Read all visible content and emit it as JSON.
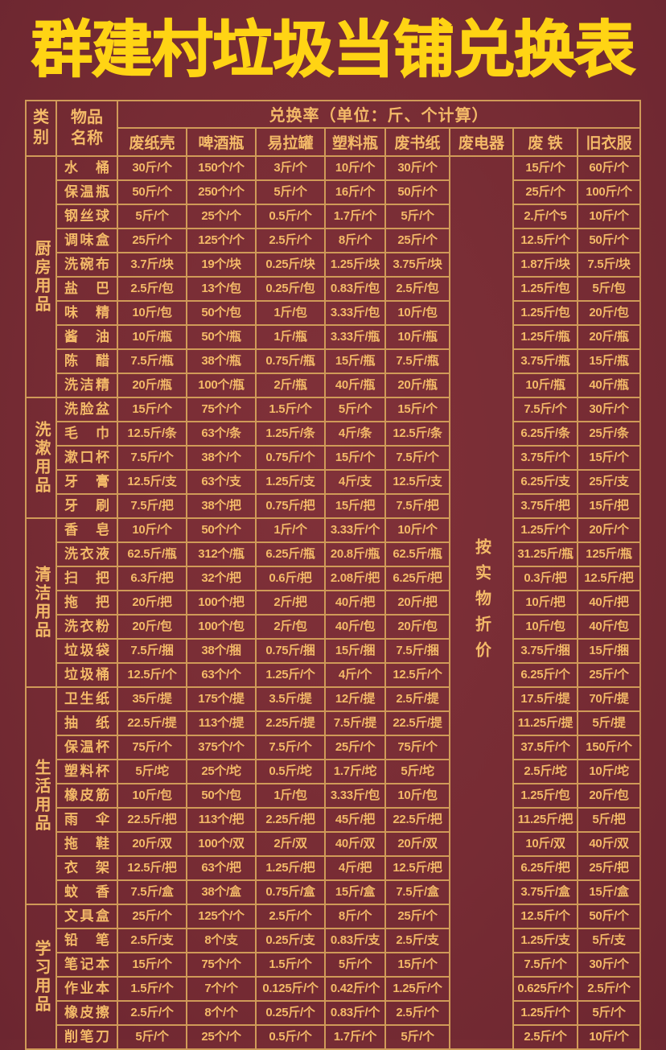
{
  "title": "群建村垃圾当铺兑换表",
  "colors": {
    "background": "#772c34",
    "border_gold": "#d09a58",
    "text_gold": "#f4ba68",
    "title_yellow": "#ffd414"
  },
  "table": {
    "corner": {
      "category": "类别",
      "item": "物品名称"
    },
    "rate_header": "兑换率（单位：斤、个计算）",
    "columns": [
      "废纸壳",
      "啤酒瓶",
      "易拉罐",
      "塑料瓶",
      "废书纸",
      "废电器",
      "废 铁",
      "旧衣服"
    ],
    "appliance_note": "按实物折价",
    "sections": [
      {
        "category": "厨房用品",
        "rows": [
          {
            "name": "水桶",
            "values": [
              "30斤/个",
              "150个/个",
              "3斤/个",
              "10斤/个",
              "30斤/个",
              "15斤/个",
              "60斤/个"
            ]
          },
          {
            "name": "保温瓶",
            "values": [
              "50斤/个",
              "250个/个",
              "5斤/个",
              "16斤/个",
              "50斤/个",
              "25斤/个",
              "100斤/个"
            ]
          },
          {
            "name": "钢丝球",
            "values": [
              "5斤/个",
              "25个/个",
              "0.5斤/个",
              "1.7斤/个",
              "5斤/个",
              "2.斤/个5",
              "10斤/个"
            ]
          },
          {
            "name": "调味盒",
            "values": [
              "25斤/个",
              "125个/个",
              "2.5斤/个",
              "8斤/个",
              "25斤/个",
              "12.5斤/个",
              "50斤/个"
            ]
          },
          {
            "name": "洗碗布",
            "values": [
              "3.7斤/块",
              "19个/块",
              "0.25斤/块",
              "1.25斤/块",
              "3.75斤/块",
              "1.87斤/块",
              "7.5斤/块"
            ]
          },
          {
            "name": "盐巴",
            "values": [
              "2.5斤/包",
              "13个/包",
              "0.25斤/包",
              "0.83斤/包",
              "2.5斤/包",
              "1.25斤/包",
              "5斤/包"
            ]
          },
          {
            "name": "味精",
            "values": [
              "10斤/包",
              "50个/包",
              "1斤/包",
              "3.33斤/包",
              "10斤/包",
              "1.25斤/包",
              "20斤/包"
            ]
          },
          {
            "name": "酱油",
            "values": [
              "10斤/瓶",
              "50个/瓶",
              "1斤/瓶",
              "3.33斤/瓶",
              "10斤/瓶",
              "1.25斤/瓶",
              "20斤/瓶"
            ]
          },
          {
            "name": "陈醋",
            "values": [
              "7.5斤/瓶",
              "38个/瓶",
              "0.75斤/瓶",
              "15斤/瓶",
              "7.5斤/瓶",
              "3.75斤/瓶",
              "15斤/瓶"
            ]
          },
          {
            "name": "洗洁精",
            "values": [
              "20斤/瓶",
              "100个/瓶",
              "2斤/瓶",
              "40斤/瓶",
              "20斤/瓶",
              "10斤/瓶",
              "40斤/瓶"
            ]
          }
        ]
      },
      {
        "category": "洗漱用品",
        "rows": [
          {
            "name": "洗脸盆",
            "values": [
              "15斤/个",
              "75个/个",
              "1.5斤/个",
              "5斤/个",
              "15斤/个",
              "7.5斤/个",
              "30斤/个"
            ]
          },
          {
            "name": "毛巾",
            "values": [
              "12.5斤/条",
              "63个/条",
              "1.25斤/条",
              "4斤/条",
              "12.5斤/条",
              "6.25斤/条",
              "25斤/条"
            ]
          },
          {
            "name": "漱口杯",
            "values": [
              "7.5斤/个",
              "38个/个",
              "0.75斤/个",
              "15斤/个",
              "7.5斤/个",
              "3.75斤/个",
              "15斤/个"
            ]
          },
          {
            "name": "牙膏",
            "values": [
              "12.5斤/支",
              "63个/支",
              "1.25斤/支",
              "4斤/支",
              "12.5斤/支",
              "6.25斤/支",
              "25斤/支"
            ]
          },
          {
            "name": "牙刷",
            "values": [
              "7.5斤/把",
              "38个/把",
              "0.75斤/把",
              "15斤/把",
              "7.5斤/把",
              "3.75斤/把",
              "15斤/把"
            ]
          }
        ]
      },
      {
        "category": "清洁用品",
        "rows": [
          {
            "name": "香皂",
            "values": [
              "10斤/个",
              "50个/个",
              "1斤/个",
              "3.33斤/个",
              "10斤/个",
              "1.25斤/个",
              "20斤/个"
            ]
          },
          {
            "name": "洗衣液",
            "values": [
              "62.5斤/瓶",
              "312个/瓶",
              "6.25斤/瓶",
              "20.8斤/瓶",
              "62.5斤/瓶",
              "31.25斤/瓶",
              "125斤/瓶"
            ]
          },
          {
            "name": "扫把",
            "values": [
              "6.3斤/把",
              "32个/把",
              "0.6斤/把",
              "2.08斤/把",
              "6.25斤/把",
              "0.3斤/把",
              "12.5斤/把"
            ]
          },
          {
            "name": "拖把",
            "values": [
              "20斤/把",
              "100个/把",
              "2斤/把",
              "40斤/把",
              "20斤/把",
              "10斤/把",
              "40斤/把"
            ]
          },
          {
            "name": "洗衣粉",
            "values": [
              "20斤/包",
              "100个/包",
              "2斤/包",
              "40斤/包",
              "20斤/包",
              "10斤/包",
              "40斤/包"
            ]
          },
          {
            "name": "垃圾袋",
            "values": [
              "7.5斤/捆",
              "38个/捆",
              "0.75斤/捆",
              "15斤/捆",
              "7.5斤/捆",
              "3.75斤/捆",
              "15斤/捆"
            ]
          },
          {
            "name": "垃圾桶",
            "values": [
              "12.5斤/个",
              "63个/个",
              "1.25斤/个",
              "4斤/个",
              "12.5斤/个",
              "6.25斤/个",
              "25斤/个"
            ]
          }
        ]
      },
      {
        "category": "生活用品",
        "rows": [
          {
            "name": "卫生纸",
            "values": [
              "35斤/提",
              "175个/提",
              "3.5斤/提",
              "12斤/提",
              "2.5斤/提",
              "17.5斤/提",
              "70斤/提"
            ]
          },
          {
            "name": "抽纸",
            "values": [
              "22.5斤/提",
              "113个/提",
              "2.25斤/提",
              "7.5斤/提",
              "22.5斤/提",
              "11.25斤/提",
              "5斤/提"
            ]
          },
          {
            "name": "保温杯",
            "values": [
              "75斤/个",
              "375个/个",
              "7.5斤/个",
              "25斤/个",
              "75斤/个",
              "37.5斤/个",
              "150斤/个"
            ]
          },
          {
            "name": "塑料杯",
            "values": [
              "5斤/坨",
              "25个/坨",
              "0.5斤/坨",
              "1.7斤/坨",
              "5斤/坨",
              "2.5斤/坨",
              "10斤/坨"
            ]
          },
          {
            "name": "橡皮筋",
            "values": [
              "10斤/包",
              "50个/包",
              "1斤/包",
              "3.33斤/包",
              "10斤/包",
              "1.25斤/包",
              "20斤/包"
            ]
          },
          {
            "name": "雨伞",
            "values": [
              "22.5斤/把",
              "113个/把",
              "2.25斤/把",
              "45斤/把",
              "22.5斤/把",
              "11.25斤/把",
              "5斤/把"
            ]
          },
          {
            "name": "拖鞋",
            "values": [
              "20斤/双",
              "100个/双",
              "2斤/双",
              "40斤/双",
              "20斤/双",
              "10斤/双",
              "40斤/双"
            ]
          },
          {
            "name": "衣架",
            "values": [
              "12.5斤/把",
              "63个/把",
              "1.25斤/把",
              "4斤/把",
              "12.5斤/把",
              "6.25斤/把",
              "25斤/把"
            ]
          },
          {
            "name": "蚊香",
            "values": [
              "7.5斤/盒",
              "38个/盒",
              "0.75斤/盒",
              "15斤/盒",
              "7.5斤/盒",
              "3.75斤/盒",
              "15斤/盒"
            ]
          }
        ]
      },
      {
        "category": "学习用品",
        "rows": [
          {
            "name": "文具盒",
            "values": [
              "25斤/个",
              "125个/个",
              "2.5斤/个",
              "8斤/个",
              "25斤/个",
              "12.5斤/个",
              "50斤/个"
            ]
          },
          {
            "name": "铅笔",
            "values": [
              "2.5斤/支",
              "8个/支",
              "0.25斤/支",
              "0.83斤/支",
              "2.5斤/支",
              "1.25斤/支",
              "5斤/支"
            ]
          },
          {
            "name": "笔记本",
            "values": [
              "15斤/个",
              "75个/个",
              "1.5斤/个",
              "5斤/个",
              "15斤/个",
              "7.5斤/个",
              "30斤/个"
            ]
          },
          {
            "name": "作业本",
            "values": [
              "1.5斤/个",
              "7个/个",
              "0.125斤/个",
              "0.42斤/个",
              "1.25斤/个",
              "0.625斤/个",
              "2.5斤/个"
            ]
          },
          {
            "name": "橡皮擦",
            "values": [
              "2.5斤/个",
              "8个/个",
              "0.25斤/个",
              "0.83斤/个",
              "2.5斤/个",
              "1.25斤/个",
              "5斤/个"
            ]
          },
          {
            "name": "削笔刀",
            "values": [
              "5斤/个",
              "25个/个",
              "0.5斤/个",
              "1.7斤/个",
              "5斤/个",
              "2.5斤/个",
              "10斤/个"
            ]
          }
        ]
      }
    ]
  }
}
